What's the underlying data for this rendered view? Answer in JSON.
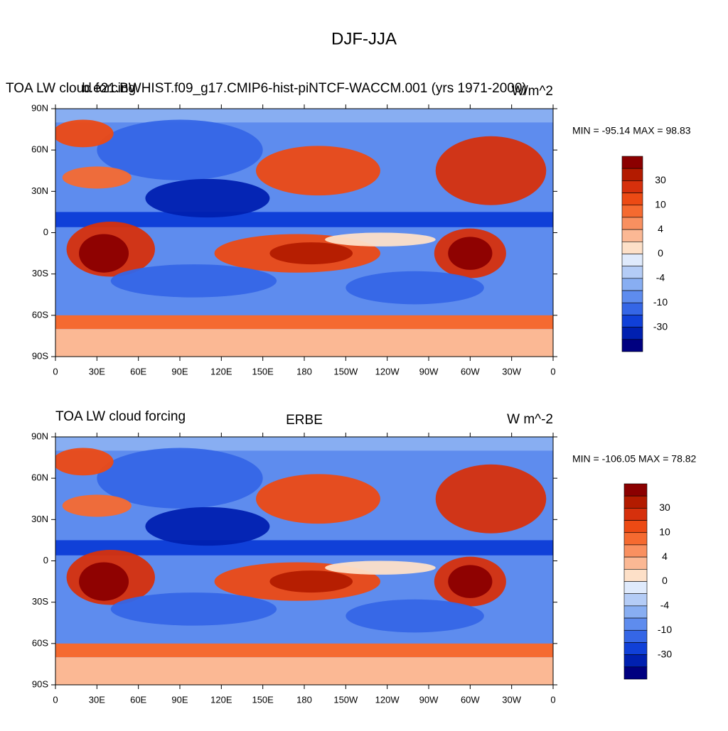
{
  "title": "DJF-JJA",
  "lat_labels": [
    "90N",
    "60N",
    "30N",
    "0",
    "30S",
    "60S",
    "90S"
  ],
  "lon_labels": [
    "0",
    "30E",
    "60E",
    "90E",
    "120E",
    "150E",
    "180",
    "150W",
    "120W",
    "90W",
    "60W",
    "30W",
    "0"
  ],
  "colorbar": {
    "labels": [
      "30",
      "10",
      "4",
      "0",
      "-4",
      "-10",
      "-30"
    ],
    "colors": [
      "#8b0000",
      "#b31b00",
      "#d6300c",
      "#ec4a14",
      "#f56a30",
      "#f99060",
      "#fbb894",
      "#fde0c8",
      "#dfeafc",
      "#b4ccf6",
      "#88aef2",
      "#5e8cee",
      "#3566e6",
      "#1040d8",
      "#0020b0",
      "#000080"
    ]
  },
  "panels": [
    {
      "left_title": "TOA LW cloud forcing",
      "center_title": "b.e21.BWHIST.f09_g17.CMIP6-hist-piNTCF-WACCM.001 (yrs 1971-2000)",
      "right_title": "W/m^2",
      "stats": "MIN = -95.14 MAX =  98.83"
    },
    {
      "left_title": "TOA LW cloud forcing",
      "center_title": "ERBE",
      "right_title": "W m^-2",
      "stats": "MIN = -106.05 MAX =  78.82"
    }
  ]
}
